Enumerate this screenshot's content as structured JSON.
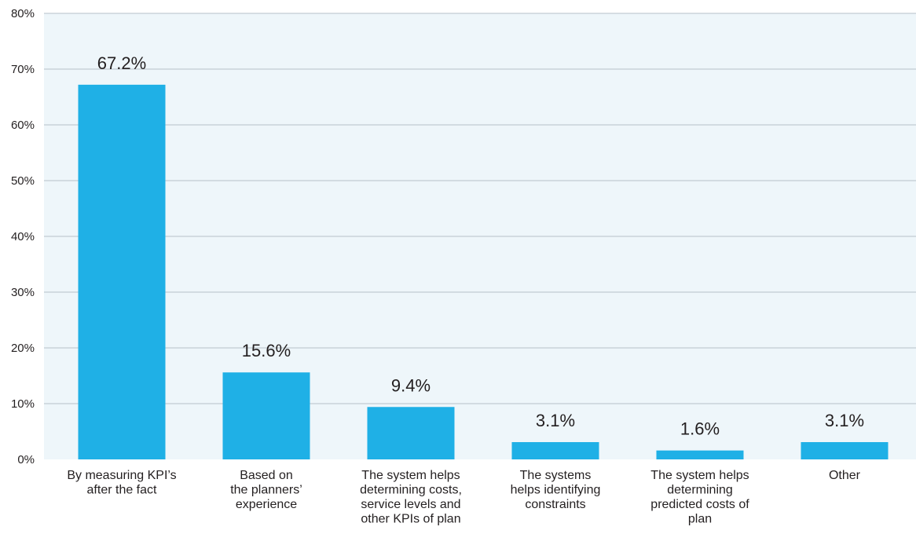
{
  "colors": {
    "plot_background": "#eef6fa",
    "gridline": "#b7c0c8",
    "bar": "#1fb0e6",
    "text": "#231f20"
  },
  "chart_data": {
    "type": "bar",
    "title": "",
    "xlabel": "",
    "ylabel": "",
    "ylim": [
      0,
      80
    ],
    "yticks": [
      0,
      10,
      20,
      30,
      40,
      50,
      60,
      70,
      80
    ],
    "ytick_labels": [
      "0%",
      "10%",
      "20%",
      "30%",
      "40%",
      "50%",
      "60%",
      "70%",
      "80%"
    ],
    "grid": true,
    "legend": "none",
    "categories": [
      "By measuring KPI’s after the fact",
      "Based on the planners’ experience",
      "The system helps determining costs, service levels and other KPIs of plan",
      "The systems helps identifying constraints",
      "The system helps determining predicted costs of plan",
      "Other"
    ],
    "category_label_lines": [
      [
        "By measuring KPI’s",
        "after the fact"
      ],
      [
        "Based on",
        "the planners’",
        "experience"
      ],
      [
        "The system helps",
        "determining costs,",
        "service levels and",
        "other KPIs of plan"
      ],
      [
        "The systems",
        "helps identifying",
        "constraints"
      ],
      [
        "The system helps",
        "determining",
        "predicted costs of",
        "plan"
      ],
      [
        "Other"
      ]
    ],
    "values": [
      67.2,
      15.6,
      9.4,
      3.1,
      1.6,
      3.1
    ],
    "value_labels": [
      "67.2%",
      "15.6%",
      "9.4%",
      "3.1%",
      "1.6%",
      "3.1%"
    ]
  }
}
